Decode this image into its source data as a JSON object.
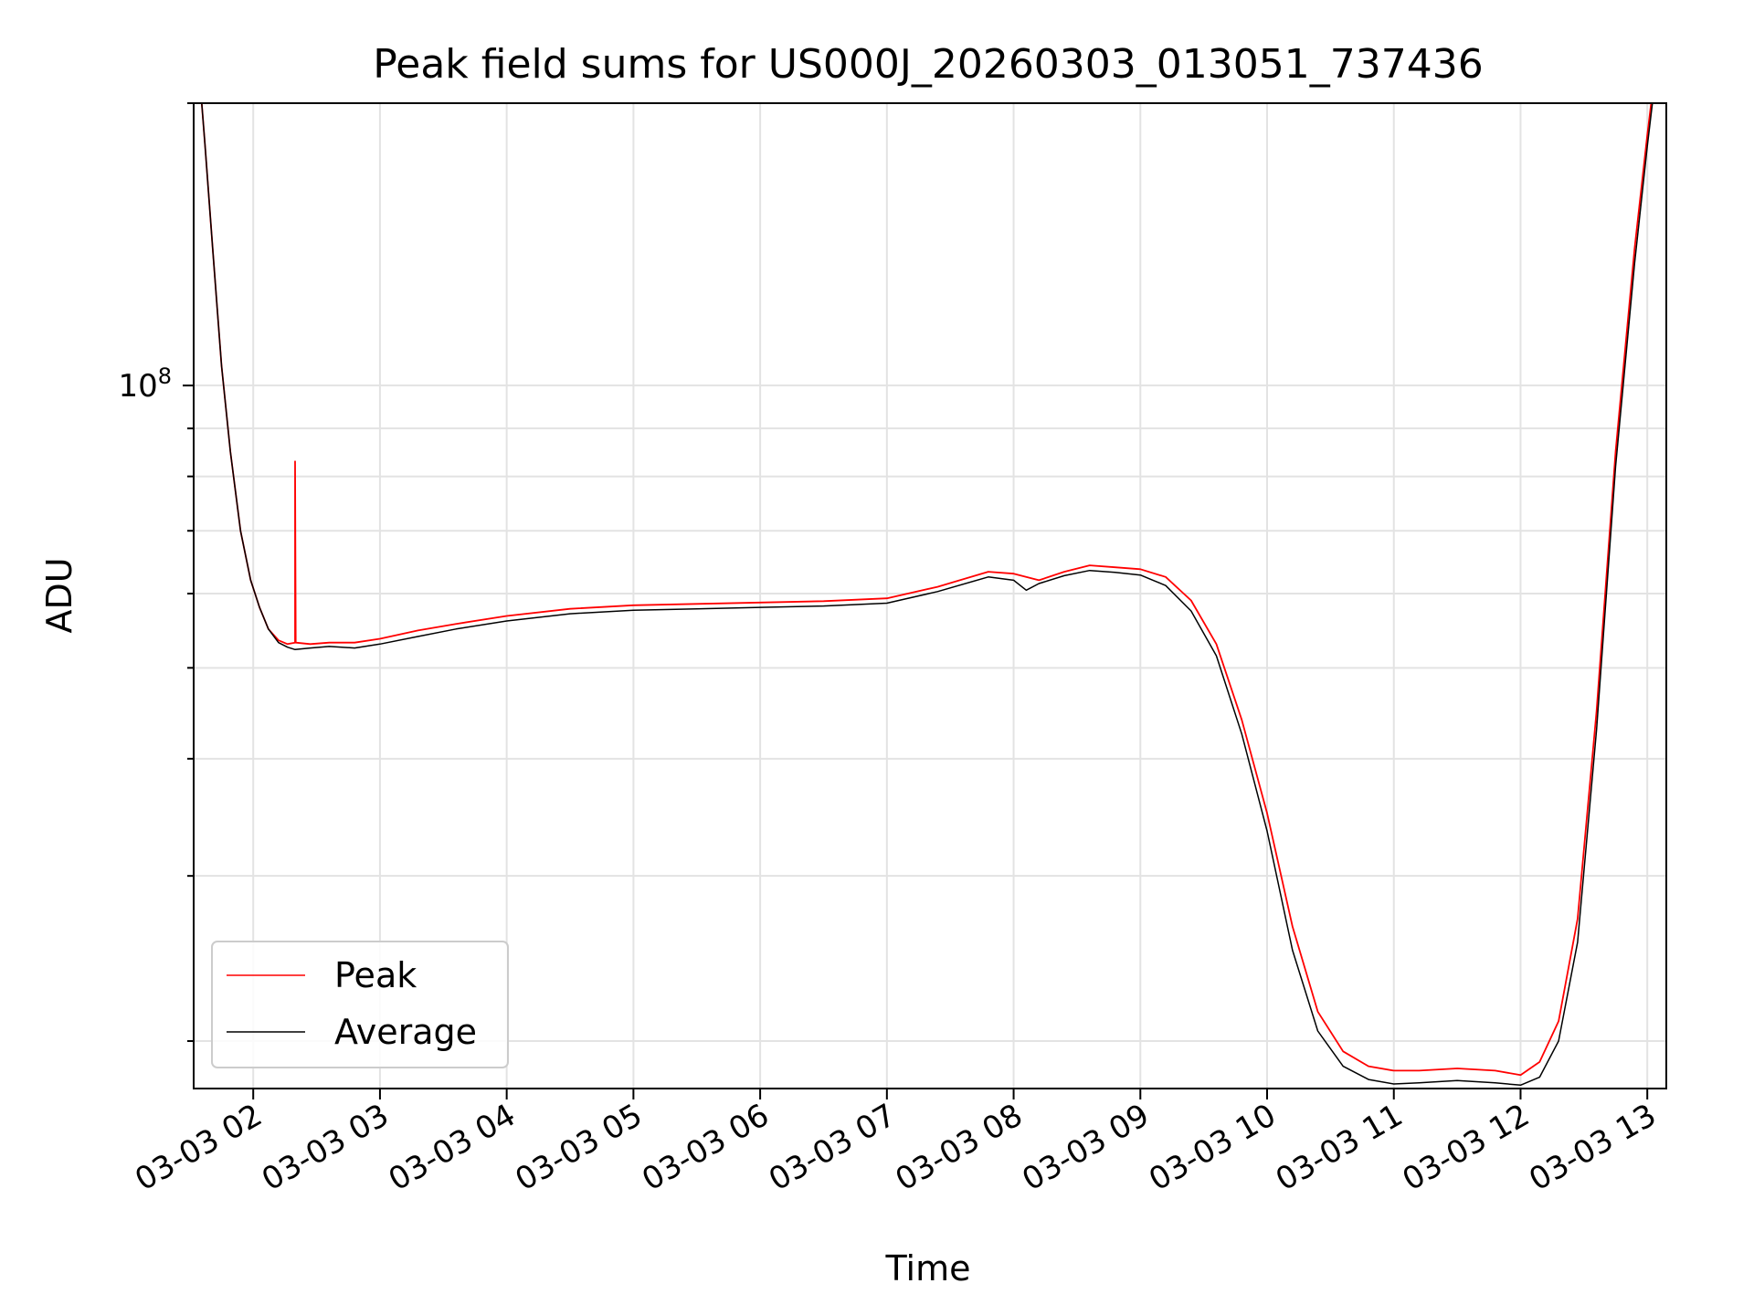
{
  "chart_data": {
    "type": "line",
    "title": "Peak field sums for US000J_20260303_013051_737436",
    "xlabel": "Time",
    "ylabel": "ADU",
    "y_scale": "log",
    "ylim": [
      17800000,
      200000000
    ],
    "xlim": [
      1.53,
      13.15
    ],
    "x_ticks": [
      {
        "x": 2,
        "label": "03-03 02"
      },
      {
        "x": 3,
        "label": "03-03 03"
      },
      {
        "x": 4,
        "label": "03-03 04"
      },
      {
        "x": 5,
        "label": "03-03 05"
      },
      {
        "x": 6,
        "label": "03-03 06"
      },
      {
        "x": 7,
        "label": "03-03 07"
      },
      {
        "x": 8,
        "label": "03-03 08"
      },
      {
        "x": 9,
        "label": "03-03 09"
      },
      {
        "x": 10,
        "label": "03-03 10"
      },
      {
        "x": 11,
        "label": "03-03 11"
      },
      {
        "x": 12,
        "label": "03-03 12"
      },
      {
        "x": 13,
        "label": "03-03 13"
      }
    ],
    "y_major_tick": {
      "value": 100000000,
      "base": "10",
      "exp": "8"
    },
    "y_minor_ticks": [
      20000000,
      30000000,
      40000000,
      50000000,
      60000000,
      70000000,
      80000000,
      90000000,
      200000000
    ],
    "grid": true,
    "legend": {
      "position": "lower-left"
    },
    "series": [
      {
        "name": "Peak",
        "color": "#ff0000",
        "points": [
          [
            1.57,
            220000000
          ],
          [
            1.62,
            180000000
          ],
          [
            1.68,
            140000000
          ],
          [
            1.75,
            105000000
          ],
          [
            1.82,
            85000000
          ],
          [
            1.9,
            70000000
          ],
          [
            1.98,
            62000000
          ],
          [
            2.05,
            58000000
          ],
          [
            2.12,
            55000000
          ],
          [
            2.2,
            53500000
          ],
          [
            2.27,
            53000000
          ],
          [
            2.33,
            53200000
          ],
          [
            2.33,
            83000000
          ],
          [
            2.335,
            53200000
          ],
          [
            2.45,
            53000000
          ],
          [
            2.6,
            53200000
          ],
          [
            2.8,
            53200000
          ],
          [
            3.0,
            53700000
          ],
          [
            3.3,
            54800000
          ],
          [
            3.6,
            55700000
          ],
          [
            4.0,
            56800000
          ],
          [
            4.5,
            57800000
          ],
          [
            5.0,
            58300000
          ],
          [
            5.5,
            58500000
          ],
          [
            6.0,
            58700000
          ],
          [
            6.5,
            58900000
          ],
          [
            7.0,
            59300000
          ],
          [
            7.4,
            61000000
          ],
          [
            7.8,
            63300000
          ],
          [
            8.0,
            63000000
          ],
          [
            8.2,
            62000000
          ],
          [
            8.4,
            63300000
          ],
          [
            8.6,
            64300000
          ],
          [
            8.8,
            64000000
          ],
          [
            9.0,
            63700000
          ],
          [
            9.2,
            62500000
          ],
          [
            9.4,
            59000000
          ],
          [
            9.6,
            53000000
          ],
          [
            9.8,
            44000000
          ],
          [
            10.0,
            35000000
          ],
          [
            10.2,
            26500000
          ],
          [
            10.4,
            21500000
          ],
          [
            10.6,
            19500000
          ],
          [
            10.8,
            18800000
          ],
          [
            11.0,
            18600000
          ],
          [
            11.2,
            18600000
          ],
          [
            11.5,
            18700000
          ],
          [
            11.8,
            18600000
          ],
          [
            12.0,
            18400000
          ],
          [
            12.15,
            19000000
          ],
          [
            12.3,
            21000000
          ],
          [
            12.45,
            27000000
          ],
          [
            12.6,
            45000000
          ],
          [
            12.75,
            85000000
          ],
          [
            12.9,
            140000000
          ],
          [
            13.0,
            185000000
          ],
          [
            13.05,
            210000000
          ]
        ]
      },
      {
        "name": "Average",
        "color": "#000000",
        "points": [
          [
            1.57,
            220000000
          ],
          [
            1.62,
            180000000
          ],
          [
            1.68,
            140000000
          ],
          [
            1.75,
            105000000
          ],
          [
            1.82,
            85000000
          ],
          [
            1.9,
            70000000
          ],
          [
            1.98,
            62000000
          ],
          [
            2.05,
            58000000
          ],
          [
            2.12,
            55000000
          ],
          [
            2.2,
            53200000
          ],
          [
            2.27,
            52600000
          ],
          [
            2.33,
            52300000
          ],
          [
            2.45,
            52500000
          ],
          [
            2.6,
            52700000
          ],
          [
            2.8,
            52500000
          ],
          [
            3.0,
            53000000
          ],
          [
            3.3,
            54000000
          ],
          [
            3.6,
            55000000
          ],
          [
            4.0,
            56100000
          ],
          [
            4.5,
            57100000
          ],
          [
            5.0,
            57600000
          ],
          [
            5.5,
            57800000
          ],
          [
            6.0,
            58000000
          ],
          [
            6.5,
            58200000
          ],
          [
            7.0,
            58600000
          ],
          [
            7.4,
            60300000
          ],
          [
            7.8,
            62500000
          ],
          [
            8.0,
            62000000
          ],
          [
            8.1,
            60500000
          ],
          [
            8.2,
            61500000
          ],
          [
            8.4,
            62700000
          ],
          [
            8.6,
            63500000
          ],
          [
            8.8,
            63200000
          ],
          [
            9.0,
            62800000
          ],
          [
            9.2,
            61200000
          ],
          [
            9.4,
            57500000
          ],
          [
            9.6,
            51500000
          ],
          [
            9.8,
            42500000
          ],
          [
            10.0,
            33500000
          ],
          [
            10.2,
            25000000
          ],
          [
            10.4,
            20500000
          ],
          [
            10.6,
            18800000
          ],
          [
            10.8,
            18200000
          ],
          [
            11.0,
            18000000
          ],
          [
            11.2,
            18050000
          ],
          [
            11.5,
            18150000
          ],
          [
            11.8,
            18050000
          ],
          [
            12.0,
            17950000
          ],
          [
            12.15,
            18300000
          ],
          [
            12.3,
            20000000
          ],
          [
            12.45,
            25500000
          ],
          [
            12.6,
            43000000
          ],
          [
            12.75,
            82000000
          ],
          [
            12.9,
            135000000
          ],
          [
            13.0,
            180000000
          ],
          [
            13.05,
            205000000
          ]
        ]
      }
    ]
  }
}
